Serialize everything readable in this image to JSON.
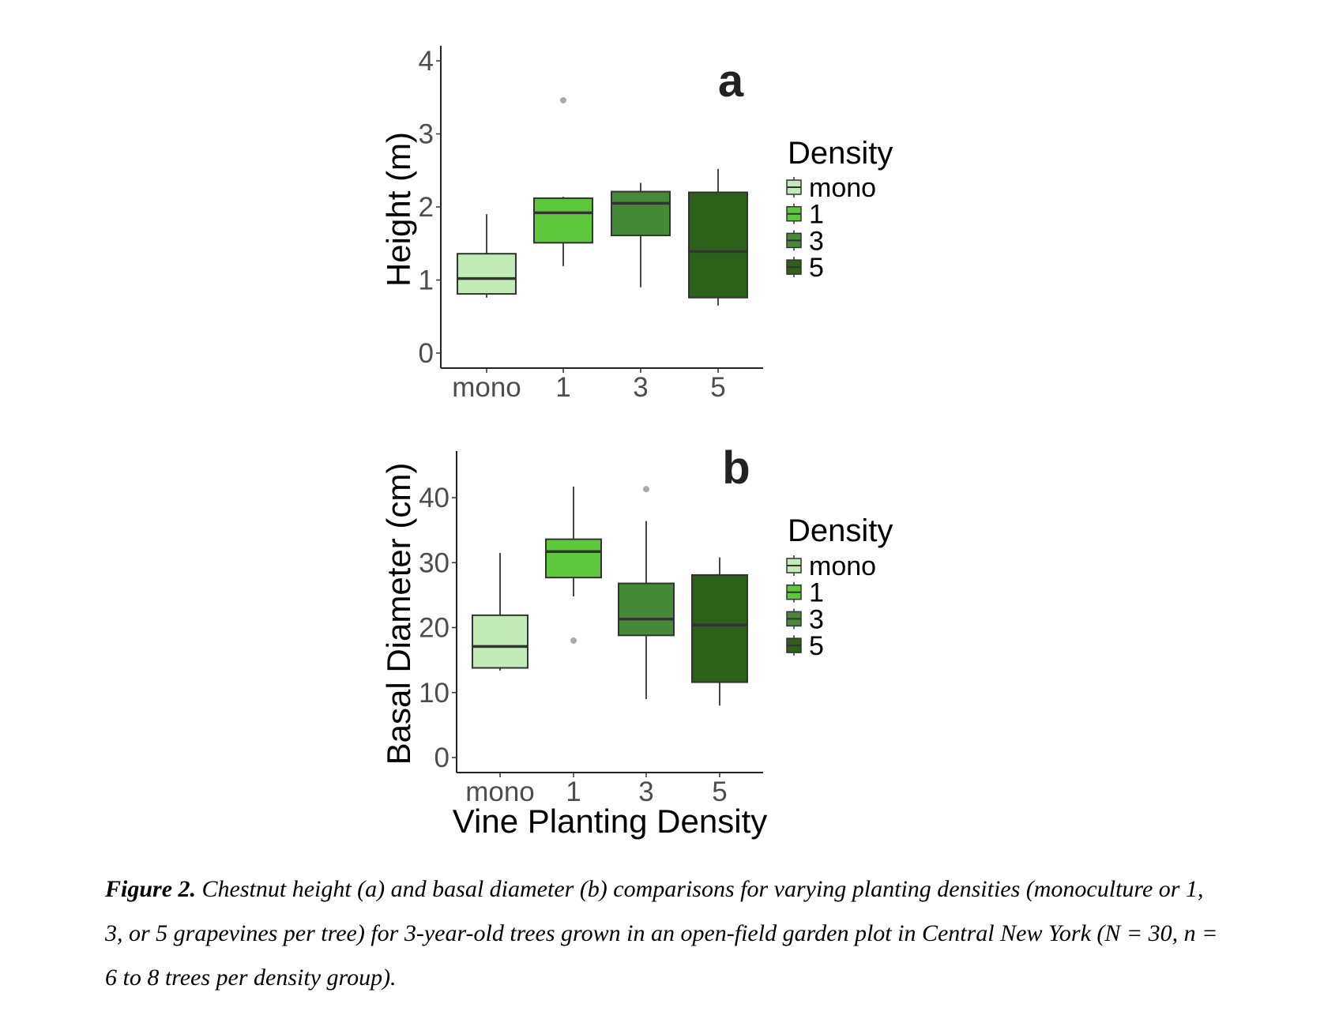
{
  "chart_data": [
    {
      "type": "box",
      "panel_label": "a",
      "title": "",
      "xlabel": "",
      "ylabel": "Height (m)",
      "ylim": [
        0,
        4
      ],
      "yticks": [
        0,
        1,
        2,
        3,
        4
      ],
      "categories": [
        "mono",
        "1",
        "3",
        "5"
      ],
      "grid": false,
      "legend": {
        "title": "Density",
        "position": "right",
        "entries": [
          "mono",
          "1",
          "3",
          "5"
        ]
      },
      "series": [
        {
          "name": "mono",
          "color": "#c2ebb8",
          "whisker_low": 0.76,
          "q1": 0.81,
          "median": 1.02,
          "q3": 1.36,
          "whisker_high": 1.9,
          "outliers": []
        },
        {
          "name": "1",
          "color": "#5dc83c",
          "whisker_low": 1.19,
          "q1": 1.51,
          "median": 1.92,
          "q3": 2.12,
          "whisker_high": 2.14,
          "outliers": [
            3.46
          ]
        },
        {
          "name": "3",
          "color": "#458b37",
          "whisker_low": 0.9,
          "q1": 1.61,
          "median": 2.05,
          "q3": 2.21,
          "whisker_high": 2.33,
          "outliers": []
        },
        {
          "name": "5",
          "color": "#2b6119",
          "whisker_low": 0.65,
          "q1": 0.76,
          "median": 1.39,
          "q3": 2.2,
          "whisker_high": 2.52,
          "outliers": []
        }
      ]
    },
    {
      "type": "box",
      "panel_label": "b",
      "title": "",
      "xlabel": "Vine Planting Density",
      "ylabel": "Basal Diameter (cm)",
      "ylim": [
        0,
        46
      ],
      "yticks": [
        0,
        10,
        20,
        30,
        40
      ],
      "categories": [
        "mono",
        "1",
        "3",
        "5"
      ],
      "grid": false,
      "legend": {
        "title": "Density",
        "position": "right",
        "entries": [
          "mono",
          "1",
          "3",
          "5"
        ]
      },
      "series": [
        {
          "name": "mono",
          "color": "#c2ebb8",
          "whisker_low": 13.4,
          "q1": 13.8,
          "median": 17.1,
          "q3": 21.9,
          "whisker_high": 31.5,
          "outliers": []
        },
        {
          "name": "1",
          "color": "#5dc83c",
          "whisker_low": 24.8,
          "q1": 27.7,
          "median": 31.7,
          "q3": 33.6,
          "whisker_high": 41.7,
          "outliers": [
            18.0
          ]
        },
        {
          "name": "3",
          "color": "#458b37",
          "whisker_low": 9.0,
          "q1": 18.8,
          "median": 21.3,
          "q3": 26.8,
          "whisker_high": 36.4,
          "outliers": [
            41.3
          ]
        },
        {
          "name": "5",
          "color": "#2b6119",
          "whisker_low": 8.0,
          "q1": 11.6,
          "median": 20.4,
          "q3": 28.1,
          "whisker_high": 30.8,
          "outliers": []
        }
      ]
    }
  ],
  "style": {
    "outlier_color": "#aaaaaa",
    "box_outline_color": "#333333"
  },
  "caption": {
    "label": "Figure 2.",
    "text": " Chestnut height (a) and basal diameter (b) comparisons for varying planting densities (monoculture or 1, 3, or 5 grapevines per tree) for 3-year-old trees grown in an open-field garden plot in Central New York (N = 30, n = 6 to 8 trees per density group)."
  }
}
